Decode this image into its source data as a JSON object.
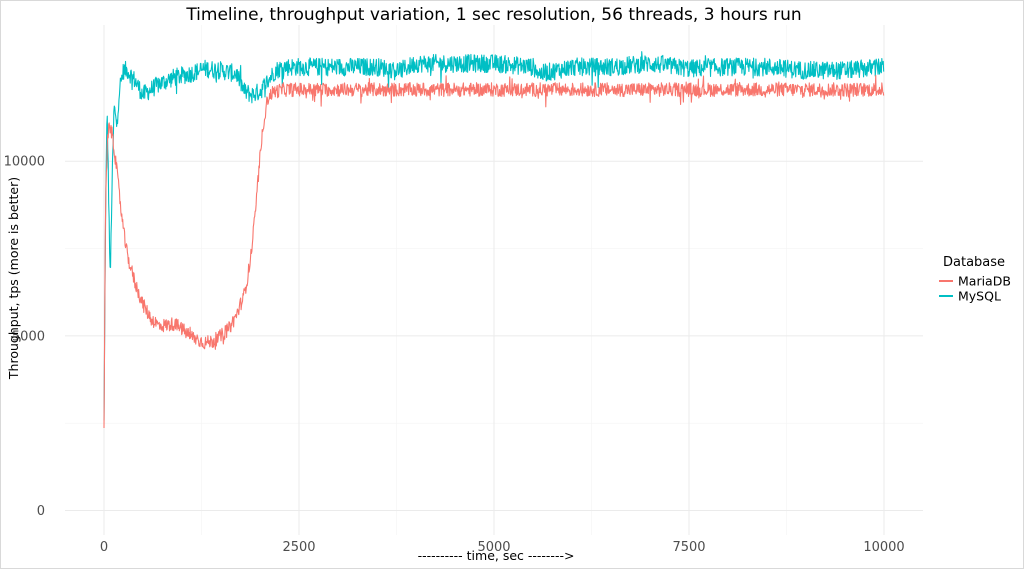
{
  "chart_data": {
    "type": "line",
    "title": "Timeline, throughput variation, 1 sec resolution, 56 threads, 3 hours run",
    "xlabel": "---------- time, sec -------->",
    "ylabel": "Throughput, tps (more is better)",
    "xlim": [
      -500,
      10500
    ],
    "ylim": [
      -700,
      13900
    ],
    "x_ticks": [
      0,
      2500,
      5000,
      7500,
      10000
    ],
    "x_tick_labels": [
      "0",
      "2500",
      "5000",
      "7500",
      "10000"
    ],
    "y_ticks": [
      0,
      5000,
      10000
    ],
    "y_tick_labels": [
      "0",
      "5000",
      "10000"
    ],
    "grid": true,
    "legend": {
      "title": "Database",
      "position": "right"
    },
    "series": [
      {
        "name": "MariaDB",
        "color": "#F8766D",
        "x": [
          0,
          20,
          50,
          80,
          110,
          150,
          200,
          250,
          300,
          400,
          500,
          600,
          700,
          800,
          900,
          1000,
          1100,
          1200,
          1300,
          1400,
          1500,
          1600,
          1700,
          1800,
          1850,
          1900,
          1950,
          2000,
          2050,
          2100,
          2150,
          2200,
          2300,
          2500,
          3000,
          3500,
          4000,
          4500,
          5000,
          5500,
          6000,
          6500,
          7000,
          7500,
          8000,
          8500,
          9000,
          9500,
          10000
        ],
        "values": [
          2500,
          9000,
          10800,
          11000,
          10700,
          10000,
          9000,
          8000,
          7300,
          6500,
          5900,
          5500,
          5300,
          5300,
          5350,
          5200,
          5000,
          4900,
          4800,
          4850,
          5000,
          5200,
          5600,
          6200,
          6800,
          7600,
          8800,
          10100,
          11200,
          11800,
          11950,
          12000,
          12050,
          12050,
          12050,
          12050,
          12050,
          12050,
          12050,
          12050,
          12050,
          12050,
          12050,
          12050,
          12050,
          12050,
          12050,
          12050,
          12050
        ],
        "spread": 200
      },
      {
        "name": "MySQL",
        "color": "#00BFC4",
        "x": [
          0,
          20,
          40,
          60,
          80,
          100,
          130,
          160,
          200,
          250,
          300,
          400,
          500,
          700,
          900,
          1100,
          1300,
          1500,
          1700,
          1800,
          1900,
          2000,
          2100,
          2200,
          2300,
          2500,
          3000,
          3500,
          3800,
          4000,
          4500,
          5000,
          5500,
          5600,
          6000,
          6500,
          7000,
          7500,
          8000,
          8500,
          9000,
          9500,
          10000
        ],
        "values": [
          2500,
          8500,
          11500,
          9000,
          6500,
          9000,
          11600,
          11000,
          12100,
          12600,
          12600,
          12300,
          11900,
          12200,
          12400,
          12500,
          12650,
          12600,
          12500,
          12000,
          11900,
          12000,
          12300,
          12600,
          12700,
          12700,
          12700,
          12700,
          12600,
          12800,
          12800,
          12800,
          12700,
          12500,
          12700,
          12700,
          12800,
          12650,
          12700,
          12700,
          12600,
          12600,
          12700
        ],
        "spread": 260
      }
    ]
  }
}
